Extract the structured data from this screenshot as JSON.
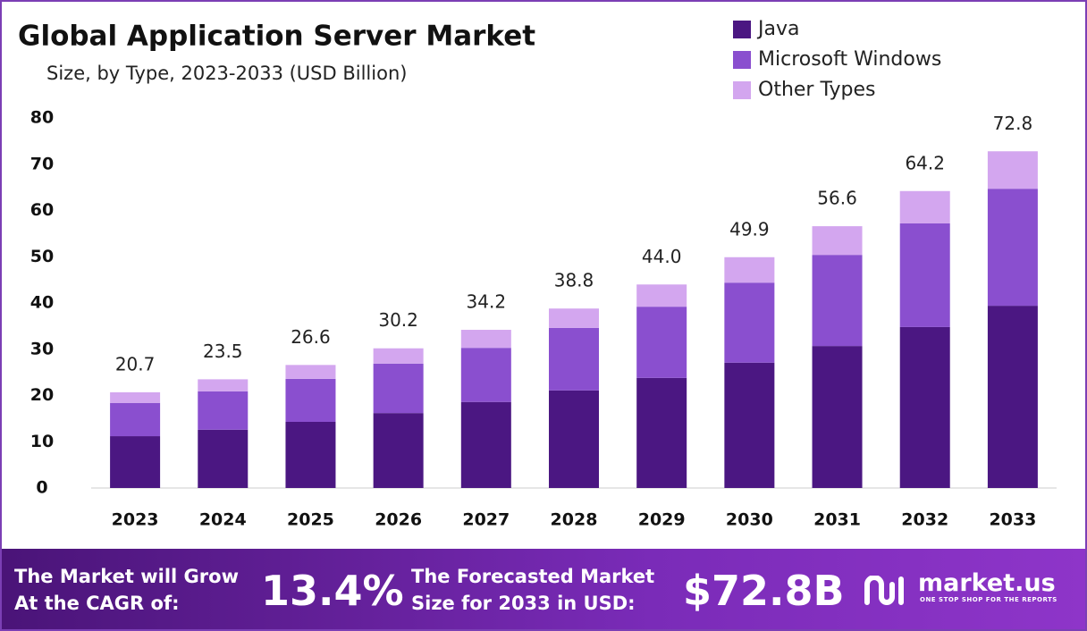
{
  "chart_data": {
    "type": "stacked-bar",
    "title": "Global Application Server Market",
    "subtitle": "Size, by Type, 2023-2033 (USD Billion)",
    "categories": [
      "2023",
      "2024",
      "2025",
      "2026",
      "2027",
      "2028",
      "2029",
      "2030",
      "2031",
      "2032",
      "2033"
    ],
    "series": [
      {
        "name": "Java",
        "color": "#4b1782",
        "values": [
          11.2,
          12.6,
          14.3,
          16.2,
          18.6,
          21.1,
          23.8,
          27.1,
          30.7,
          34.8,
          39.4
        ]
      },
      {
        "name": "Microsoft Windows",
        "color": "#8a4fcf",
        "values": [
          7.2,
          8.3,
          9.3,
          10.7,
          11.7,
          13.5,
          15.4,
          17.3,
          19.7,
          22.4,
          25.3
        ]
      },
      {
        "name": "Other Types",
        "color": "#d3a6ef",
        "values": [
          2.3,
          2.6,
          3.0,
          3.3,
          3.9,
          4.2,
          4.8,
          5.5,
          6.2,
          7.0,
          8.1
        ]
      }
    ],
    "totals": {
      "values": [
        20.7,
        23.5,
        26.6,
        30.2,
        34.2,
        38.8,
        44.0,
        49.9,
        56.6,
        64.2,
        72.8
      ],
      "value_labels": [
        "20.7",
        "23.5",
        "26.6",
        "30.2",
        "34.2",
        "38.8",
        "44.0",
        "49.9",
        "56.6",
        "64.2",
        "72.8"
      ]
    },
    "ylim": [
      0,
      80
    ],
    "yticks": [
      0,
      10,
      20,
      30,
      40,
      50,
      60,
      70,
      80
    ],
    "grid": false,
    "legend": "top-right"
  },
  "footer": {
    "cagr_text": [
      "The Market will Grow",
      "At the CAGR of:"
    ],
    "cagr": "13.4%",
    "forecast_text": [
      "The Forecasted Market",
      "Size for 2033 in USD:"
    ],
    "forecast": "$72.8B",
    "brand": "market.us",
    "tagline": "ONE STOP SHOP FOR THE REPORTS"
  }
}
